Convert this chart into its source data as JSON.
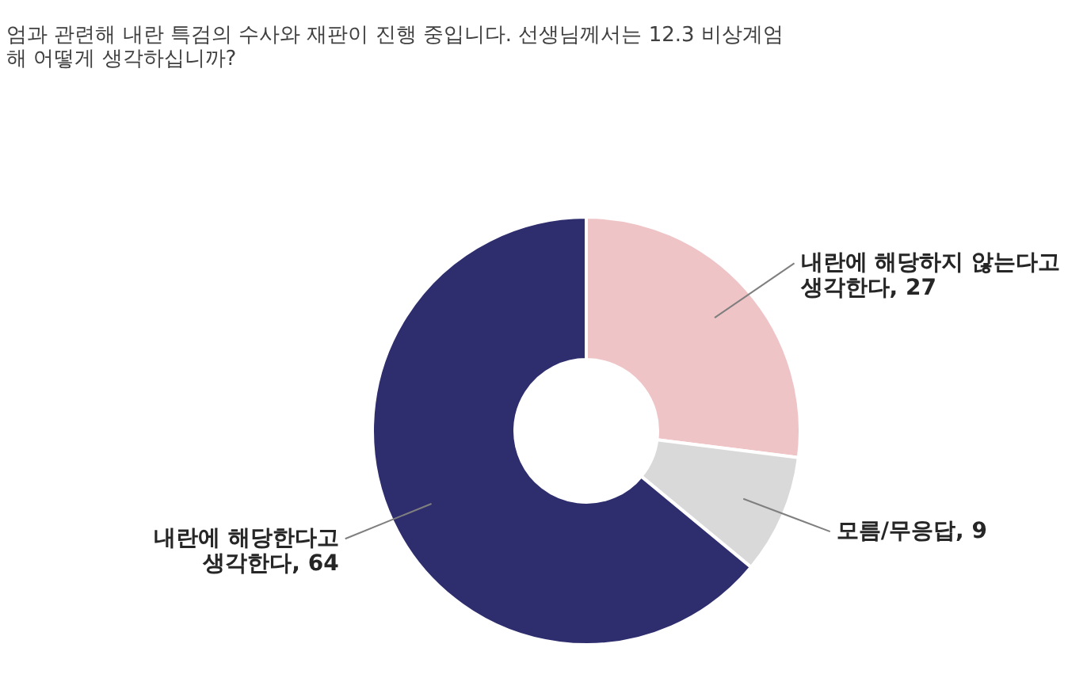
{
  "chart_data": {
    "type": "donut",
    "title": [
      "엄과 관련해 내란 특검의 수사와 재판이 진행 중입니다. 선생님께서는 12.3 비상계엄",
      "해 어떻게 생각하십니까?"
    ],
    "categories": [
      "내란에 해당하지 않는다고 생각한다, 27",
      "모름/무응답, 9",
      "내란에 해당한다고 생각한다, 64"
    ],
    "values": [
      27,
      9,
      64
    ],
    "colors": [
      "#efc4c6",
      "#d9d9d9",
      "#2e2d6e"
    ],
    "legend": false
  }
}
